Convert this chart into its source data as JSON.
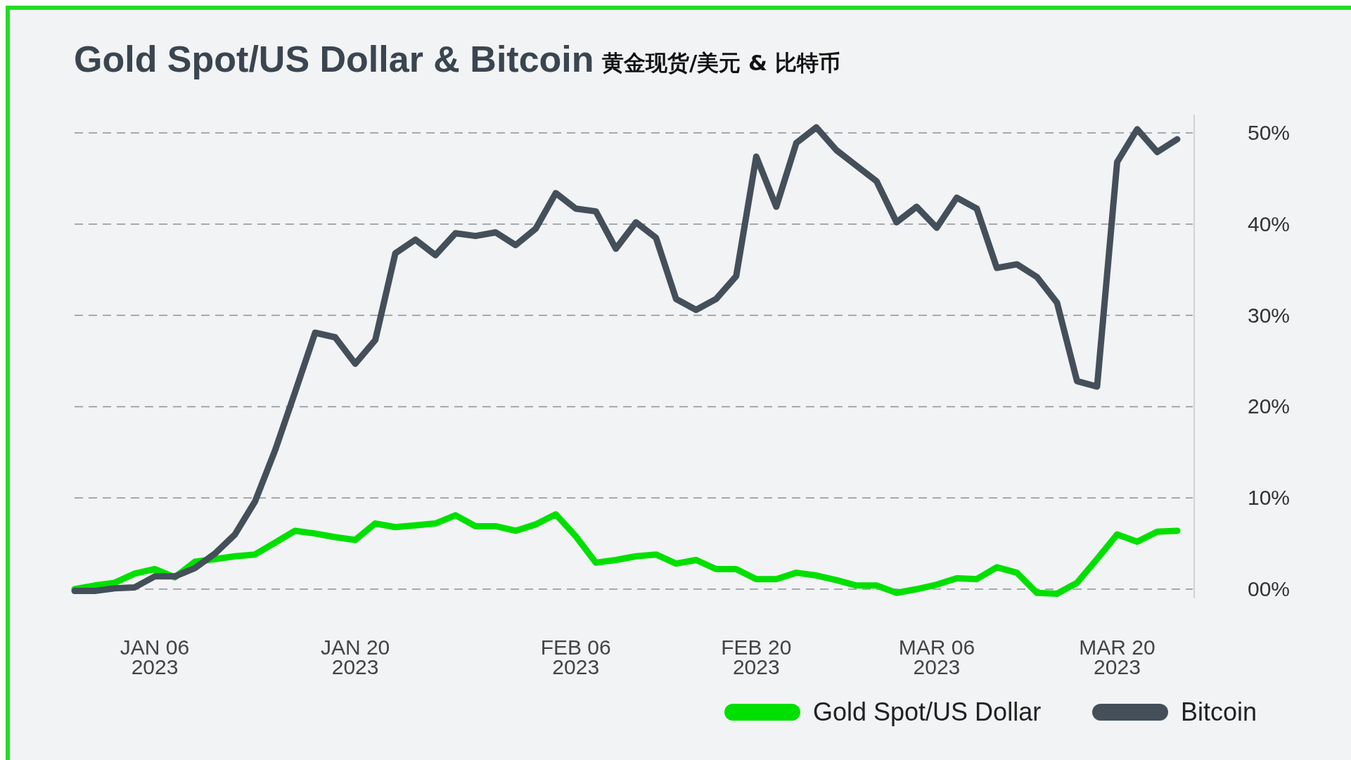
{
  "chart_data": {
    "type": "line",
    "title": "Gold Spot/US Dollar & Bitcoin",
    "subtitle": "黄金现货/美元 & 比特币",
    "categories": [
      null,
      null,
      null,
      null,
      "JAN 06\n2023",
      null,
      null,
      null,
      null,
      null,
      null,
      null,
      null,
      null,
      "JAN 20\n2023",
      null,
      null,
      null,
      null,
      null,
      null,
      null,
      null,
      null,
      null,
      "FEB 06\n2023",
      null,
      null,
      null,
      null,
      null,
      null,
      null,
      null,
      "FEB 20\n2023",
      null,
      null,
      null,
      null,
      null,
      null,
      null,
      null,
      "MAR 06\n2023",
      null,
      null,
      null,
      null,
      null,
      null,
      null,
      null,
      "MAR 20\n2023",
      null,
      null,
      null
    ],
    "series": [
      {
        "name": "Gold Spot/US Dollar",
        "color": "#00e000",
        "values": [
          0,
          0.4,
          0.7,
          1.7,
          2.2,
          1.3,
          3.0,
          3.3,
          3.6,
          3.8,
          5.1,
          6.4,
          6.1,
          5.7,
          5.4,
          7.2,
          6.8,
          7.0,
          7.2,
          8.1,
          6.9,
          6.9,
          6.4,
          7.1,
          8.2,
          5.8,
          2.9,
          3.2,
          3.6,
          3.8,
          2.8,
          3.2,
          2.2,
          2.2,
          1.1,
          1.1,
          1.8,
          1.5,
          1.0,
          0.4,
          0.4,
          -0.4,
          0,
          0.5,
          1.2,
          1.1,
          2.4,
          1.8,
          -0.4,
          -0.5,
          0.7,
          3.3,
          6.0,
          5.2,
          6.3,
          6.4
        ]
      },
      {
        "name": "Bitcoin",
        "color": "#444f5a",
        "values": [
          -0.2,
          -0.2,
          0.1,
          0.2,
          1.4,
          1.4,
          2.3,
          3.9,
          6.0,
          9.6,
          15.2,
          21.6,
          28.1,
          27.6,
          24.7,
          27.3,
          36.8,
          38.3,
          36.6,
          39.0,
          38.7,
          39.1,
          37.7,
          39.5,
          43.4,
          41.7,
          41.4,
          37.3,
          40.2,
          38.5,
          31.8,
          30.6,
          31.8,
          34.3,
          47.4,
          41.9,
          48.9,
          50.6,
          48.1,
          46.4,
          44.7,
          40.2,
          41.9,
          39.6,
          42.9,
          41.7,
          35.2,
          35.6,
          34.2,
          31.4,
          22.8,
          22.2,
          46.8,
          50.4,
          47.9,
          49.3
        ]
      }
    ],
    "ylim": [
      -1,
      52
    ],
    "yticks": [
      {
        "value": 0,
        "label": "00%"
      },
      {
        "value": 10,
        "label": "10%"
      },
      {
        "value": 20,
        "label": "20%"
      },
      {
        "value": 30,
        "label": "30%"
      },
      {
        "value": 40,
        "label": "40%"
      },
      {
        "value": 50,
        "label": "50%"
      }
    ],
    "grid": "y",
    "legend": "bottom right"
  }
}
